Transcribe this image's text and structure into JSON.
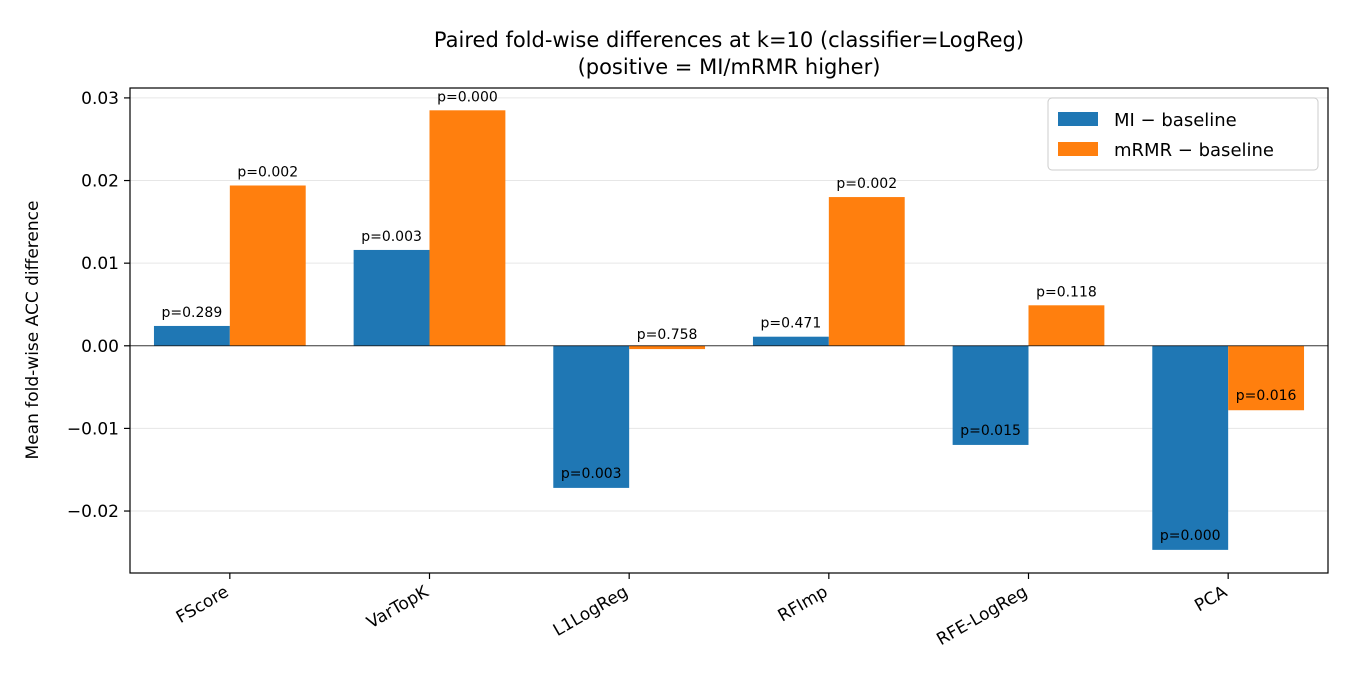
{
  "chart_data": {
    "type": "bar",
    "title_line1": "Paired fold-wise differences at k=10 (classifier=LogReg)",
    "title_line2": "(positive = MI/mRMR higher)",
    "ylabel": "Mean fold-wise ACC difference",
    "xlabel": "",
    "ylim": [
      -0.0275,
      0.0312
    ],
    "yticks": [
      -0.02,
      -0.01,
      0.0,
      0.01,
      0.02,
      0.03
    ],
    "ytick_labels": [
      "−0.02",
      "−0.01",
      "0.00",
      "0.01",
      "0.02",
      "0.03"
    ],
    "grid": "horizontal",
    "legend_position": "top-right",
    "categories": [
      "FScore",
      "VarTopK",
      "L1LogReg",
      "RFImp",
      "RFE-LogReg",
      "PCA"
    ],
    "series": [
      {
        "name": "MI − baseline",
        "color": "#1f77b4",
        "values": [
          0.0024,
          0.0116,
          -0.0172,
          0.0011,
          -0.012,
          -0.0247
        ],
        "p_labels": [
          "p=0.289",
          "p=0.003",
          "p=0.003",
          "p=0.471",
          "p=0.015",
          "p=0.000"
        ]
      },
      {
        "name": "mRMR − baseline",
        "color": "#ff7f0e",
        "values": [
          0.0194,
          0.0285,
          -0.0004,
          0.018,
          0.0049,
          -0.0078
        ],
        "p_labels": [
          "p=0.002",
          "p=0.000",
          "p=0.758",
          "p=0.002",
          "p=0.118",
          "p=0.016"
        ]
      }
    ]
  }
}
